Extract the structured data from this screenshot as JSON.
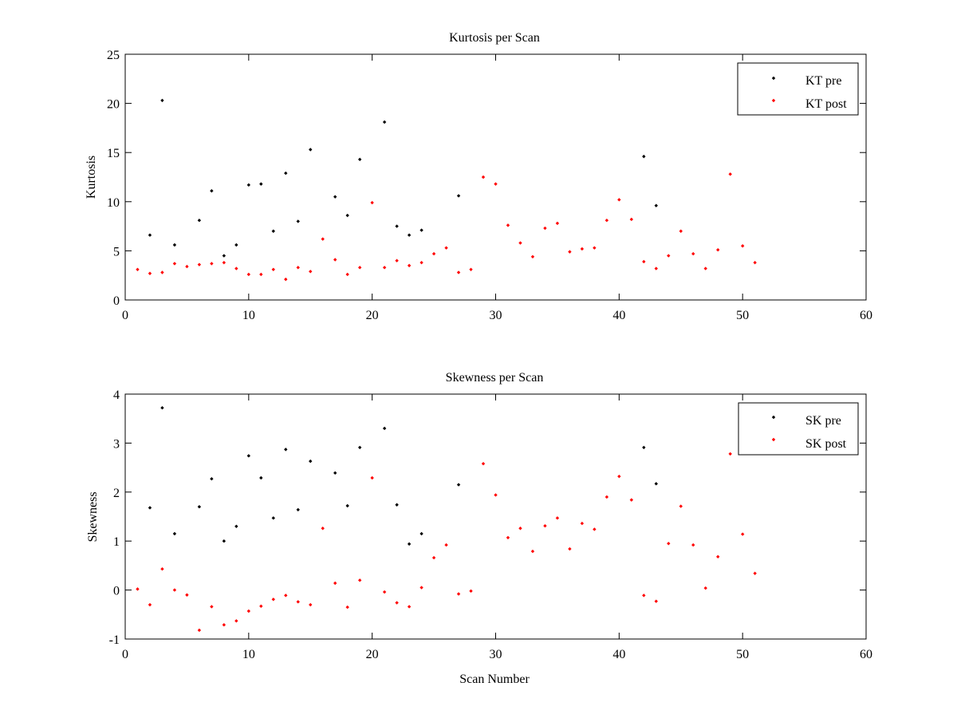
{
  "chart_data": [
    {
      "type": "scatter",
      "title": "Kurtosis per Scan",
      "xlabel": "",
      "ylabel": "Kurtosis",
      "xlim": [
        0,
        60
      ],
      "ylim": [
        0,
        25
      ],
      "xticks": [
        0,
        10,
        20,
        30,
        40,
        50,
        60
      ],
      "yticks": [
        0,
        5,
        10,
        15,
        20,
        25
      ],
      "grid": false,
      "legend_position": "top-right",
      "series": [
        {
          "name": "KT pre",
          "color": "#000000",
          "points": [
            [
              2,
              6.6
            ],
            [
              3,
              20.3
            ],
            [
              4,
              5.6
            ],
            [
              6,
              8.1
            ],
            [
              7,
              11.1
            ],
            [
              8,
              4.5
            ],
            [
              9,
              5.6
            ],
            [
              10,
              11.7
            ],
            [
              11,
              11.8
            ],
            [
              12,
              7.0
            ],
            [
              13,
              12.9
            ],
            [
              14,
              8.0
            ],
            [
              15,
              15.3
            ],
            [
              17,
              10.5
            ],
            [
              18,
              8.6
            ],
            [
              19,
              14.3
            ],
            [
              21,
              18.1
            ],
            [
              22,
              7.5
            ],
            [
              23,
              6.6
            ],
            [
              24,
              7.1
            ],
            [
              27,
              10.6
            ],
            [
              42,
              14.6
            ],
            [
              43,
              9.6
            ]
          ]
        },
        {
          "name": "KT post",
          "color": "#ff0000",
          "points": [
            [
              1,
              3.1
            ],
            [
              2,
              2.7
            ],
            [
              3,
              2.8
            ],
            [
              4,
              3.7
            ],
            [
              5,
              3.4
            ],
            [
              6,
              3.6
            ],
            [
              7,
              3.7
            ],
            [
              8,
              3.8
            ],
            [
              9,
              3.2
            ],
            [
              10,
              2.6
            ],
            [
              11,
              2.6
            ],
            [
              12,
              3.1
            ],
            [
              13,
              2.1
            ],
            [
              14,
              3.3
            ],
            [
              15,
              2.9
            ],
            [
              16,
              6.2
            ],
            [
              17,
              4.1
            ],
            [
              18,
              2.6
            ],
            [
              19,
              3.3
            ],
            [
              20,
              9.9
            ],
            [
              21,
              3.3
            ],
            [
              22,
              4.0
            ],
            [
              23,
              3.5
            ],
            [
              24,
              3.8
            ],
            [
              25,
              4.7
            ],
            [
              26,
              5.3
            ],
            [
              27,
              2.8
            ],
            [
              28,
              3.1
            ],
            [
              29,
              12.5
            ],
            [
              30,
              11.8
            ],
            [
              31,
              7.6
            ],
            [
              32,
              5.8
            ],
            [
              33,
              4.4
            ],
            [
              34,
              7.3
            ],
            [
              35,
              7.8
            ],
            [
              36,
              4.9
            ],
            [
              37,
              5.2
            ],
            [
              38,
              5.3
            ],
            [
              39,
              8.1
            ],
            [
              40,
              10.2
            ],
            [
              41,
              8.2
            ],
            [
              42,
              3.9
            ],
            [
              43,
              3.2
            ],
            [
              44,
              4.5
            ],
            [
              45,
              7.0
            ],
            [
              46,
              4.7
            ],
            [
              47,
              3.2
            ],
            [
              48,
              5.1
            ],
            [
              49,
              12.8
            ],
            [
              50,
              5.5
            ],
            [
              51,
              3.8
            ]
          ]
        }
      ]
    },
    {
      "type": "scatter",
      "title": "Skewness per Scan",
      "xlabel": "Scan Number",
      "ylabel": "Skewness",
      "xlim": [
        0,
        60
      ],
      "ylim": [
        -1,
        4
      ],
      "xticks": [
        0,
        10,
        20,
        30,
        40,
        50,
        60
      ],
      "yticks": [
        -1,
        0,
        1,
        2,
        3,
        4
      ],
      "grid": false,
      "legend_position": "top-right",
      "series": [
        {
          "name": "SK pre",
          "color": "#000000",
          "points": [
            [
              2,
              1.68
            ],
            [
              3,
              3.72
            ],
            [
              4,
              1.15
            ],
            [
              6,
              1.7
            ],
            [
              7,
              2.27
            ],
            [
              8,
              1.0
            ],
            [
              9,
              1.3
            ],
            [
              10,
              2.74
            ],
            [
              11,
              2.29
            ],
            [
              12,
              1.47
            ],
            [
              13,
              2.87
            ],
            [
              14,
              1.64
            ],
            [
              15,
              2.63
            ],
            [
              17,
              2.39
            ],
            [
              18,
              1.72
            ],
            [
              19,
              2.91
            ],
            [
              21,
              3.3
            ],
            [
              22,
              1.74
            ],
            [
              23,
              0.94
            ],
            [
              24,
              1.15
            ],
            [
              27,
              2.15
            ],
            [
              42,
              2.91
            ],
            [
              43,
              2.17
            ]
          ]
        },
        {
          "name": "SK post",
          "color": "#ff0000",
          "points": [
            [
              1,
              0.02
            ],
            [
              2,
              -0.3
            ],
            [
              3,
              0.43
            ],
            [
              4,
              0.0
            ],
            [
              5,
              -0.1
            ],
            [
              6,
              -0.82
            ],
            [
              7,
              -0.34
            ],
            [
              8,
              -0.71
            ],
            [
              9,
              -0.63
            ],
            [
              10,
              -0.43
            ],
            [
              11,
              -0.33
            ],
            [
              12,
              -0.19
            ],
            [
              13,
              -0.11
            ],
            [
              14,
              -0.24
            ],
            [
              15,
              -0.3
            ],
            [
              16,
              1.26
            ],
            [
              17,
              0.14
            ],
            [
              18,
              -0.35
            ],
            [
              19,
              0.2
            ],
            [
              20,
              2.29
            ],
            [
              21,
              -0.04
            ],
            [
              22,
              -0.26
            ],
            [
              23,
              -0.34
            ],
            [
              24,
              0.05
            ],
            [
              25,
              0.66
            ],
            [
              26,
              0.92
            ],
            [
              27,
              -0.08
            ],
            [
              28,
              -0.02
            ],
            [
              29,
              2.58
            ],
            [
              30,
              1.94
            ],
            [
              31,
              1.07
            ],
            [
              32,
              1.26
            ],
            [
              33,
              0.79
            ],
            [
              34,
              1.31
            ],
            [
              35,
              1.47
            ],
            [
              36,
              0.84
            ],
            [
              37,
              1.36
            ],
            [
              38,
              1.24
            ],
            [
              39,
              1.9
            ],
            [
              40,
              2.32
            ],
            [
              41,
              1.84
            ],
            [
              42,
              -0.11
            ],
            [
              43,
              -0.23
            ],
            [
              44,
              0.95
            ],
            [
              45,
              1.71
            ],
            [
              46,
              0.92
            ],
            [
              47,
              0.04
            ],
            [
              48,
              0.68
            ],
            [
              49,
              2.78
            ],
            [
              50,
              1.14
            ],
            [
              51,
              0.34
            ]
          ]
        }
      ]
    }
  ]
}
